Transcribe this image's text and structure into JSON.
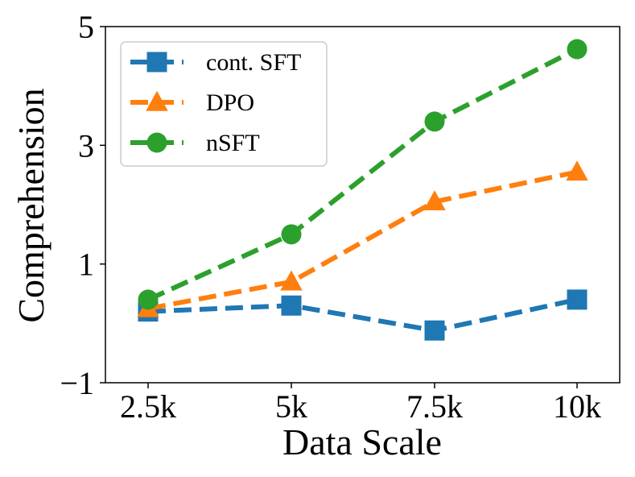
{
  "chart_data": {
    "type": "line",
    "title": "",
    "xlabel": "Data Scale",
    "ylabel": "Comprehension",
    "categories": [
      "2.5k",
      "5k",
      "7.5k",
      "10k"
    ],
    "ylim": [
      -1,
      5
    ],
    "yticks": [
      -1,
      1,
      3,
      5
    ],
    "ytick_labels": [
      "−1",
      "1",
      "3",
      "5"
    ],
    "grid": false,
    "legend_position": "upper-left",
    "series": [
      {
        "name": "cont. SFT",
        "color": "#1f77b4",
        "marker": "square",
        "values": [
          0.2,
          0.3,
          -0.12,
          0.4
        ]
      },
      {
        "name": "DPO",
        "color": "#ff7f0e",
        "marker": "triangle",
        "values": [
          0.25,
          0.7,
          2.05,
          2.55
        ]
      },
      {
        "name": "nSFT",
        "color": "#2ca02c",
        "marker": "circle",
        "values": [
          0.4,
          1.5,
          3.4,
          4.62
        ]
      }
    ]
  }
}
